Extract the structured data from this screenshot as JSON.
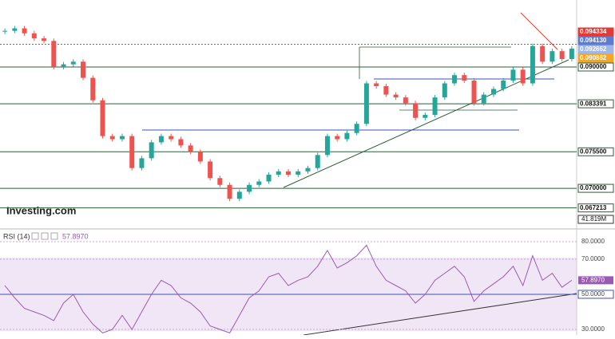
{
  "chart_data": [
    {
      "type": "candlestick",
      "log_scale": true,
      "ylim": [
        0.0651,
        0.1034
      ],
      "values": [
        0.097,
        0.0975,
        0.0965,
        0.0955,
        0.095,
        0.09,
        0.0905,
        0.091,
        0.088,
        0.084,
        0.078,
        0.0775,
        0.078,
        0.073,
        0.0745,
        0.077,
        0.078,
        0.0775,
        0.0765,
        0.0755,
        0.074,
        0.0715,
        0.0705,
        0.0685,
        0.0695,
        0.0705,
        0.071,
        0.072,
        0.0725,
        0.072,
        0.0725,
        0.073,
        0.075,
        0.078,
        0.0775,
        0.0785,
        0.08,
        0.087,
        0.0865,
        0.085,
        0.0845,
        0.0835,
        0.081,
        0.0815,
        0.0845,
        0.087,
        0.0885,
        0.0875,
        0.0835,
        0.085,
        0.086,
        0.0875,
        0.0895,
        0.087,
        0.094,
        0.091,
        0.093,
        0.0915,
        0.0935
      ],
      "up_color": "#26a69a",
      "down_color": "#ef5350",
      "levels": [
        {
          "value": 0.094334,
          "label": "0.094334",
          "color": "#e53935"
        },
        {
          "value": 0.09413,
          "label": "0.094130",
          "color": "#5b7bd5"
        },
        {
          "value": 0.092662,
          "label": "0.092662",
          "color": "#9fb6e6"
        },
        {
          "value": 0.090882,
          "label": "0.090882",
          "color": "#f5a623"
        },
        {
          "value": 0.09,
          "label": "0.090000",
          "color": "#2e5e3a"
        },
        {
          "value": 0.083391,
          "label": "0.083391",
          "color": "#2e5e3a"
        },
        {
          "value": 0.0755,
          "label": "0.075500",
          "color": "#2e5e3a"
        },
        {
          "value": 0.07,
          "label": "0.070000",
          "color": "#2e5e3a"
        },
        {
          "value": 0.067213,
          "label": "0.067213",
          "color": "#2e5e3a"
        }
      ],
      "volume_label": "41.819M",
      "logo": "Investing.com"
    },
    {
      "type": "line",
      "title": "RSI (14)",
      "last_label": "57.8970",
      "ylim": [
        26.8,
        85.9
      ],
      "yticks": [
        {
          "value": 80,
          "label": "80.0000"
        },
        {
          "value": 70,
          "label": "70.0000"
        },
        {
          "value": 50,
          "label": "50.0000"
        },
        {
          "value": 30,
          "label": "30.0000"
        }
      ],
      "color": "#9b59b6",
      "values": [
        55,
        48,
        42,
        40,
        38,
        35,
        45,
        50,
        40,
        33,
        28,
        30,
        38,
        30,
        40,
        50,
        58,
        55,
        48,
        45,
        40,
        32,
        30,
        28,
        38,
        48,
        52,
        60,
        62,
        55,
        58,
        60,
        66,
        75,
        65,
        68,
        72,
        78,
        66,
        58,
        55,
        52,
        45,
        50,
        58,
        62,
        66,
        60,
        46,
        52,
        56,
        60,
        66,
        55,
        72,
        58,
        62,
        54,
        58
      ]
    }
  ]
}
